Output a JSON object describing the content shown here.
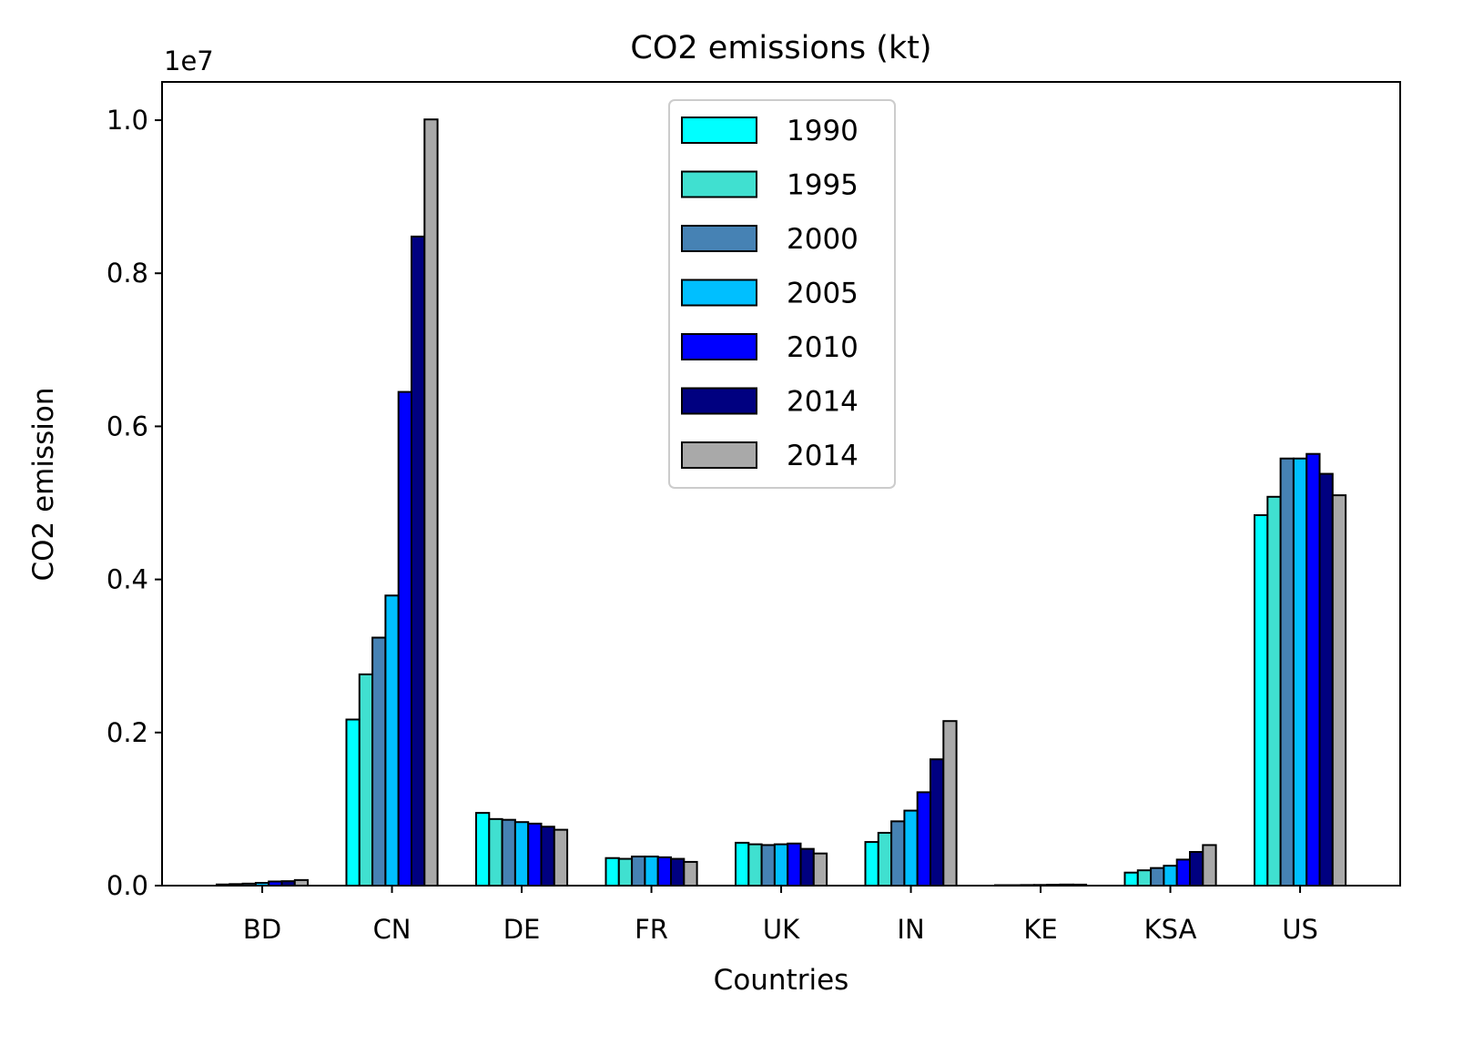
{
  "chart_data": {
    "type": "bar",
    "title": "CO2 emissions (kt)",
    "xlabel": "Countries",
    "ylabel": "CO2 emission",
    "y_offset_label": "1e7",
    "y_scale_factor": 10000000,
    "ylim": [
      0,
      10500000
    ],
    "yticks": [
      0,
      2000000,
      4000000,
      6000000,
      8000000,
      10000000
    ],
    "ytick_labels": [
      "0.0",
      "0.2",
      "0.4",
      "0.6",
      "0.8",
      "1.0"
    ],
    "categories": [
      "BD",
      "CN",
      "DE",
      "FR",
      "UK",
      "IN",
      "KE",
      "KSA",
      "US"
    ],
    "series": [
      {
        "name": "1990",
        "color": "#00FFFF",
        "values": [
          15000,
          2170000,
          950000,
          360000,
          560000,
          570000,
          6000,
          170000,
          4840000
        ]
      },
      {
        "name": "1995",
        "color": "#40E0D0",
        "values": [
          20000,
          2760000,
          870000,
          350000,
          540000,
          690000,
          6000,
          200000,
          5080000
        ]
      },
      {
        "name": "2000",
        "color": "#4682B4",
        "values": [
          26000,
          3240000,
          860000,
          380000,
          530000,
          840000,
          8000,
          230000,
          5580000
        ]
      },
      {
        "name": "2005",
        "color": "#00BFFF",
        "values": [
          36000,
          3790000,
          830000,
          380000,
          540000,
          980000,
          9000,
          260000,
          5580000
        ]
      },
      {
        "name": "2010",
        "color": "#0000FF",
        "values": [
          54000,
          6450000,
          810000,
          370000,
          550000,
          1220000,
          12000,
          340000,
          5640000
        ]
      },
      {
        "name": "2014",
        "color": "#000080",
        "values": [
          58000,
          8480000,
          770000,
          350000,
          480000,
          1650000,
          14000,
          440000,
          5380000
        ]
      },
      {
        "name": "2014",
        "color": "#A9A9A9",
        "values": [
          73000,
          10010000,
          730000,
          310000,
          420000,
          2150000,
          13000,
          530000,
          5100000
        ]
      }
    ],
    "grid": false,
    "legend": "upper-center"
  }
}
